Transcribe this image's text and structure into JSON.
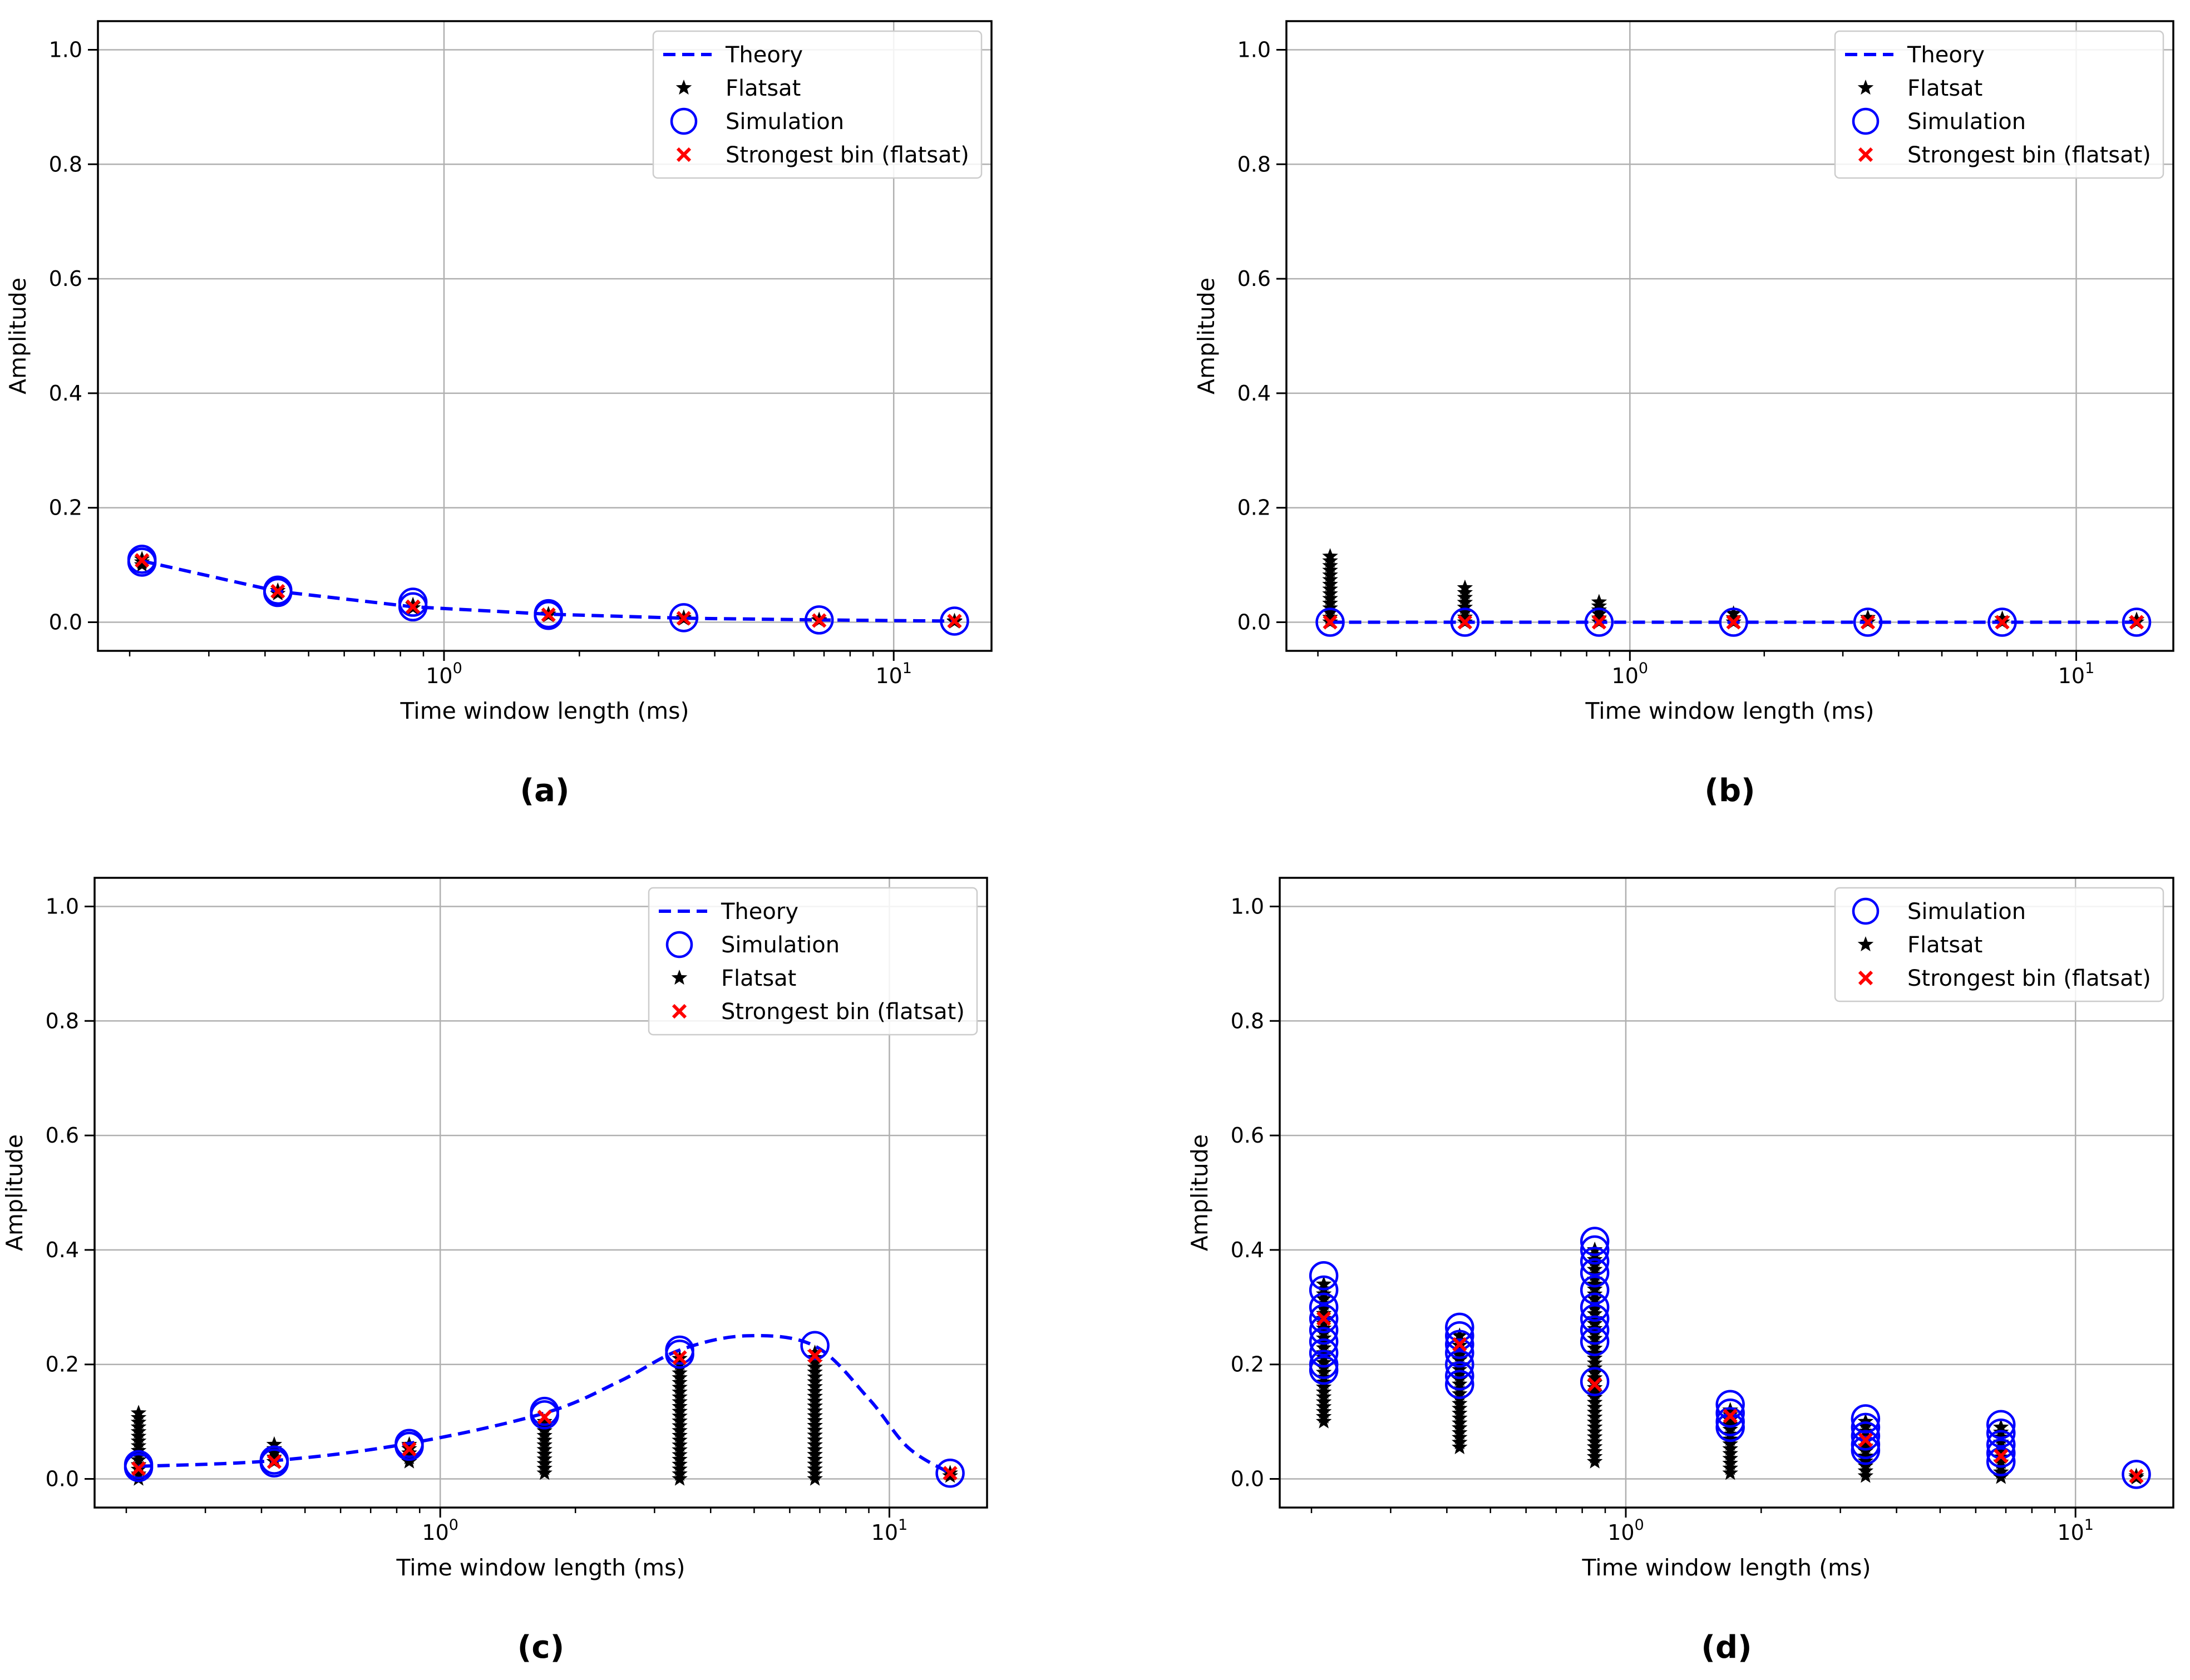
{
  "figure": {
    "theme": {
      "theory": "#0000ff",
      "simulation": "#0000ff",
      "flatsat": "#000000",
      "strongest": "#ff0000",
      "grid": "#b0b0b0"
    }
  },
  "chart_data": [
    {
      "panel": "a",
      "caption": "(a)",
      "type": "line",
      "xscale": "log",
      "xlabel": "Time window length (ms)",
      "ylabel": "Amplitude",
      "xlim": [
        0.17,
        16.5
      ],
      "ylim": [
        -0.05,
        1.05
      ],
      "xticks": [
        {
          "value": 1,
          "base": "10",
          "exp": "0"
        },
        {
          "value": 10,
          "base": "10",
          "exp": "1"
        }
      ],
      "yticks": [
        {
          "value": 0.0,
          "label": "0.0"
        },
        {
          "value": 0.2,
          "label": "0.2"
        },
        {
          "value": 0.4,
          "label": "0.4"
        },
        {
          "value": 0.6,
          "label": "0.6"
        },
        {
          "value": 0.8,
          "label": "0.8"
        },
        {
          "value": 1.0,
          "label": "1.0"
        }
      ],
      "grid": true,
      "legend": {
        "position": "top-right",
        "entries": [
          {
            "key": "theory",
            "label": "Theory"
          },
          {
            "key": "flatsat",
            "label": "Flatsat"
          },
          {
            "key": "simulation",
            "label": "Simulation"
          },
          {
            "key": "strongest",
            "label": "Strongest bin (flatsat)"
          }
        ]
      },
      "theory": {
        "x": [
          0.213,
          0.427,
          0.853,
          1.707,
          3.413,
          6.827,
          13.653
        ],
        "y": [
          0.107,
          0.054,
          0.027,
          0.014,
          0.007,
          0.004,
          0.002
        ],
        "smooth": false
      },
      "simulation": [
        {
          "x": 0.213,
          "y": [
            0.11,
            0.105
          ]
        },
        {
          "x": 0.427,
          "y": [
            0.056,
            0.052
          ]
        },
        {
          "x": 0.853,
          "y": [
            0.035,
            0.027
          ]
        },
        {
          "x": 1.707,
          "y": [
            0.015,
            0.012
          ]
        },
        {
          "x": 3.413,
          "y": [
            0.008
          ]
        },
        {
          "x": 6.827,
          "y": [
            0.004
          ]
        },
        {
          "x": 13.653,
          "y": [
            0.002
          ]
        }
      ],
      "flatsat": [
        {
          "x": 0.213,
          "min": 0.1,
          "max": 0.11
        },
        {
          "x": 0.427,
          "min": 0.05,
          "max": 0.055
        },
        {
          "x": 0.853,
          "min": 0.025,
          "max": 0.03
        },
        {
          "x": 1.707,
          "min": 0.012,
          "max": 0.014
        },
        {
          "x": 3.413,
          "min": 0.006,
          "max": 0.008
        },
        {
          "x": 6.827,
          "min": 0.003,
          "max": 0.004
        },
        {
          "x": 13.653,
          "min": 0.001,
          "max": 0.002
        }
      ],
      "strongest": [
        {
          "x": 0.213,
          "y": 0.108
        },
        {
          "x": 0.427,
          "y": 0.054
        },
        {
          "x": 0.853,
          "y": 0.027
        },
        {
          "x": 1.707,
          "y": 0.013
        },
        {
          "x": 3.413,
          "y": 0.007
        },
        {
          "x": 6.827,
          "y": 0.003
        },
        {
          "x": 13.653,
          "y": 0.002
        }
      ]
    },
    {
      "panel": "b",
      "caption": "(b)",
      "type": "line",
      "xscale": "log",
      "xlabel": "Time window length (ms)",
      "ylabel": "Amplitude",
      "xlim": [
        0.17,
        16.5
      ],
      "ylim": [
        -0.05,
        1.05
      ],
      "xticks": [
        {
          "value": 1,
          "base": "10",
          "exp": "0"
        },
        {
          "value": 10,
          "base": "10",
          "exp": "1"
        }
      ],
      "yticks": [
        {
          "value": 0.0,
          "label": "0.0"
        },
        {
          "value": 0.2,
          "label": "0.2"
        },
        {
          "value": 0.4,
          "label": "0.4"
        },
        {
          "value": 0.6,
          "label": "0.6"
        },
        {
          "value": 0.8,
          "label": "0.8"
        },
        {
          "value": 1.0,
          "label": "1.0"
        }
      ],
      "grid": true,
      "legend": {
        "position": "top-right",
        "entries": [
          {
            "key": "theory",
            "label": "Theory"
          },
          {
            "key": "flatsat",
            "label": "Flatsat"
          },
          {
            "key": "simulation",
            "label": "Simulation"
          },
          {
            "key": "strongest",
            "label": "Strongest bin (flatsat)"
          }
        ]
      },
      "theory": {
        "x": [
          0.213,
          0.427,
          0.853,
          1.707,
          3.413,
          6.827,
          13.653
        ],
        "y": [
          0,
          0,
          0,
          0,
          0,
          0,
          0
        ],
        "smooth": false
      },
      "simulation": [
        {
          "x": 0.213,
          "y": [
            0.0
          ]
        },
        {
          "x": 0.427,
          "y": [
            0.0
          ]
        },
        {
          "x": 0.853,
          "y": [
            0.0
          ]
        },
        {
          "x": 1.707,
          "y": [
            0.0
          ]
        },
        {
          "x": 3.413,
          "y": [
            0.0
          ]
        },
        {
          "x": 6.827,
          "y": [
            0.0
          ]
        },
        {
          "x": 13.653,
          "y": [
            0.0
          ]
        }
      ],
      "flatsat": [
        {
          "x": 0.213,
          "min": 0.0,
          "max": 0.115
        },
        {
          "x": 0.427,
          "min": 0.0,
          "max": 0.06
        },
        {
          "x": 0.853,
          "min": 0.0,
          "max": 0.035
        },
        {
          "x": 1.707,
          "min": 0.0,
          "max": 0.015
        },
        {
          "x": 3.413,
          "min": 0.0,
          "max": 0.008
        },
        {
          "x": 6.827,
          "min": 0.0,
          "max": 0.006
        },
        {
          "x": 13.653,
          "min": 0.0,
          "max": 0.004
        }
      ],
      "strongest": [
        {
          "x": 0.213,
          "y": 0.0
        },
        {
          "x": 0.427,
          "y": 0.0
        },
        {
          "x": 0.853,
          "y": 0.0
        },
        {
          "x": 1.707,
          "y": 0.0
        },
        {
          "x": 3.413,
          "y": 0.0
        },
        {
          "x": 6.827,
          "y": 0.0
        },
        {
          "x": 13.653,
          "y": 0.0
        }
      ]
    },
    {
      "panel": "c",
      "caption": "(c)",
      "type": "line",
      "xscale": "log",
      "xlabel": "Time window length (ms)",
      "ylabel": "Amplitude",
      "xlim": [
        0.17,
        16.5
      ],
      "ylim": [
        -0.05,
        1.05
      ],
      "xticks": [
        {
          "value": 1,
          "base": "10",
          "exp": "0"
        },
        {
          "value": 10,
          "base": "10",
          "exp": "1"
        }
      ],
      "yticks": [
        {
          "value": 0.0,
          "label": "0.0"
        },
        {
          "value": 0.2,
          "label": "0.2"
        },
        {
          "value": 0.4,
          "label": "0.4"
        },
        {
          "value": 0.6,
          "label": "0.6"
        },
        {
          "value": 0.8,
          "label": "0.8"
        },
        {
          "value": 1.0,
          "label": "1.0"
        }
      ],
      "grid": true,
      "legend": {
        "position": "top-right",
        "entries": [
          {
            "key": "theory",
            "label": "Theory"
          },
          {
            "key": "simulation",
            "label": "Simulation"
          },
          {
            "key": "flatsat",
            "label": "Flatsat"
          },
          {
            "key": "strongest",
            "label": "Strongest bin (flatsat)"
          }
        ]
      },
      "theory": {
        "x": [
          0.213,
          0.427,
          0.853,
          1.707,
          2.5,
          3.413,
          4.8,
          6.827,
          9.0,
          11.0,
          13.653
        ],
        "y": [
          0.022,
          0.032,
          0.062,
          0.115,
          0.17,
          0.225,
          0.25,
          0.232,
          0.14,
          0.055,
          0.01
        ],
        "smooth": true
      },
      "simulation": [
        {
          "x": 0.213,
          "y": [
            0.025,
            0.02
          ]
        },
        {
          "x": 0.427,
          "y": [
            0.033,
            0.028
          ]
        },
        {
          "x": 0.853,
          "y": [
            0.062,
            0.057
          ]
        },
        {
          "x": 1.707,
          "y": [
            0.118,
            0.112
          ]
        },
        {
          "x": 3.413,
          "y": [
            0.225,
            0.218
          ]
        },
        {
          "x": 6.827,
          "y": [
            0.233
          ]
        },
        {
          "x": 13.653,
          "y": [
            0.01
          ]
        }
      ],
      "flatsat": [
        {
          "x": 0.213,
          "min": 0.0,
          "max": 0.115
        },
        {
          "x": 0.427,
          "min": 0.03,
          "max": 0.06
        },
        {
          "x": 0.853,
          "min": 0.03,
          "max": 0.06
        },
        {
          "x": 1.707,
          "min": 0.01,
          "max": 0.1
        },
        {
          "x": 3.413,
          "min": 0.0,
          "max": 0.21
        },
        {
          "x": 6.827,
          "min": 0.0,
          "max": 0.22
        },
        {
          "x": 13.653,
          "min": 0.005,
          "max": 0.01
        }
      ],
      "strongest": [
        {
          "x": 0.213,
          "y": 0.018
        },
        {
          "x": 0.427,
          "y": 0.03
        },
        {
          "x": 0.853,
          "y": 0.052
        },
        {
          "x": 1.707,
          "y": 0.108
        },
        {
          "x": 3.413,
          "y": 0.212
        },
        {
          "x": 6.827,
          "y": 0.215
        },
        {
          "x": 13.653,
          "y": 0.01
        }
      ]
    },
    {
      "panel": "d",
      "caption": "(d)",
      "type": "scatter",
      "xscale": "log",
      "xlabel": "Time window length (ms)",
      "ylabel": "Amplitude",
      "xlim": [
        0.17,
        16.5
      ],
      "ylim": [
        -0.05,
        1.05
      ],
      "xticks": [
        {
          "value": 1,
          "base": "10",
          "exp": "0"
        },
        {
          "value": 10,
          "base": "10",
          "exp": "1"
        }
      ],
      "yticks": [
        {
          "value": 0.0,
          "label": "0.0"
        },
        {
          "value": 0.2,
          "label": "0.2"
        },
        {
          "value": 0.4,
          "label": "0.4"
        },
        {
          "value": 0.6,
          "label": "0.6"
        },
        {
          "value": 0.8,
          "label": "0.8"
        },
        {
          "value": 1.0,
          "label": "1.0"
        }
      ],
      "grid": true,
      "legend": {
        "position": "top-right",
        "entries": [
          {
            "key": "simulation",
            "label": "Simulation"
          },
          {
            "key": "flatsat",
            "label": "Flatsat"
          },
          {
            "key": "strongest",
            "label": "Strongest bin (flatsat)"
          }
        ]
      },
      "theory": null,
      "simulation": [
        {
          "x": 0.213,
          "y": [
            0.355,
            0.33,
            0.3,
            0.28,
            0.26,
            0.24,
            0.22,
            0.2,
            0.19
          ]
        },
        {
          "x": 0.427,
          "y": [
            0.265,
            0.25,
            0.235,
            0.22,
            0.2,
            0.18,
            0.165
          ]
        },
        {
          "x": 0.853,
          "y": [
            0.415,
            0.4,
            0.38,
            0.36,
            0.33,
            0.3,
            0.28,
            0.26,
            0.24,
            0.17
          ]
        },
        {
          "x": 1.707,
          "y": [
            0.13,
            0.115,
            0.1,
            0.09
          ]
        },
        {
          "x": 3.413,
          "y": [
            0.105,
            0.09,
            0.075,
            0.06,
            0.05
          ]
        },
        {
          "x": 6.827,
          "y": [
            0.095,
            0.08,
            0.06,
            0.045,
            0.03
          ]
        },
        {
          "x": 13.653,
          "y": [
            0.008
          ]
        }
      ],
      "flatsat": [
        {
          "x": 0.213,
          "min": 0.1,
          "max": 0.34
        },
        {
          "x": 0.427,
          "min": 0.055,
          "max": 0.25
        },
        {
          "x": 0.853,
          "min": 0.03,
          "max": 0.4
        },
        {
          "x": 1.707,
          "min": 0.01,
          "max": 0.12
        },
        {
          "x": 3.413,
          "min": 0.005,
          "max": 0.1
        },
        {
          "x": 6.827,
          "min": 0.003,
          "max": 0.09
        },
        {
          "x": 13.653,
          "min": 0.002,
          "max": 0.005
        }
      ],
      "strongest": [
        {
          "x": 0.213,
          "y": 0.28
        },
        {
          "x": 0.427,
          "y": 0.235
        },
        {
          "x": 0.853,
          "y": 0.165
        },
        {
          "x": 1.707,
          "y": 0.11
        },
        {
          "x": 3.413,
          "y": 0.068
        },
        {
          "x": 6.827,
          "y": 0.04
        },
        {
          "x": 13.653,
          "y": 0.005
        }
      ]
    }
  ]
}
